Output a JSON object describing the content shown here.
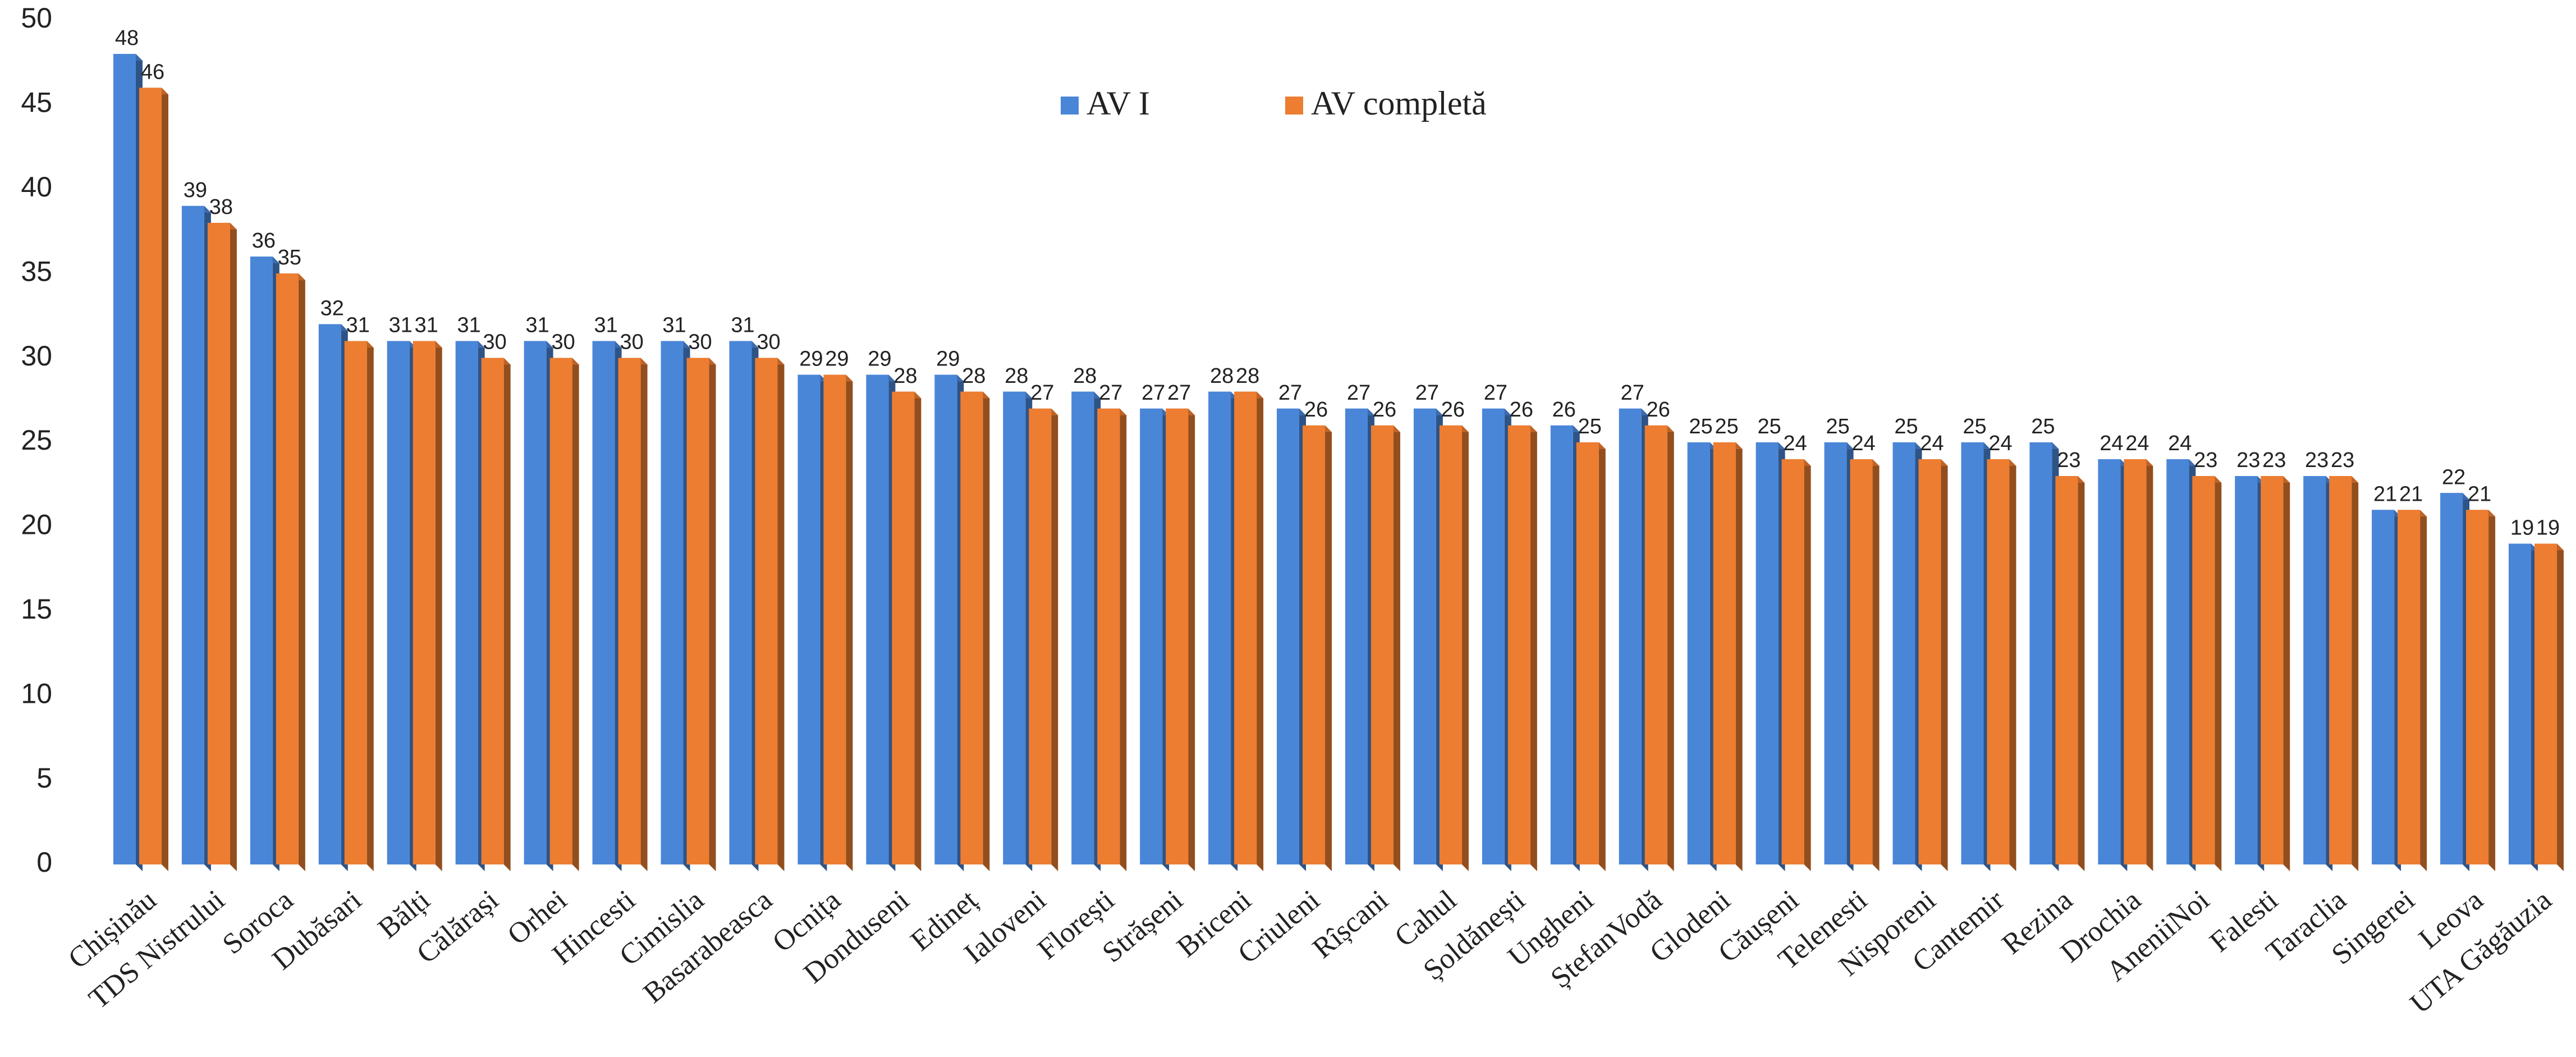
{
  "chart_data": {
    "type": "bar",
    "categories": [
      "Chișinău",
      "TDS Nistrului",
      "Soroca",
      "Dubăsari",
      "Bălți",
      "Călărași",
      "Orhei",
      "Hincesti",
      "Cimislia",
      "Basarabeasca",
      "Ocnița",
      "Donduseni",
      "Edineț",
      "Ialoveni",
      "Florești",
      "Strășeni",
      "Briceni",
      "Criuleni",
      "Rîșcani",
      "Cahul",
      "Șoldănești",
      "Ungheni",
      "ȘtefanVodă",
      "Glodeni",
      "Căușeni",
      "Telenesti",
      "Nisporeni",
      "Cantemir",
      "Rezina",
      "Drochia",
      "AneniiNoi",
      "Falesti",
      "Taraclia",
      "Singerei",
      "Leova",
      "UTA Găgăuzia"
    ],
    "series": [
      {
        "name": "AV I",
        "color": "#4a86d8",
        "values": [
          48,
          39,
          36,
          32,
          31,
          31,
          31,
          31,
          31,
          31,
          29,
          29,
          29,
          28,
          28,
          27,
          28,
          27,
          27,
          27,
          27,
          26,
          27,
          25,
          25,
          25,
          25,
          25,
          25,
          24,
          24,
          23,
          23,
          21,
          22,
          19
        ]
      },
      {
        "name": "AV completă",
        "color": "#ed7d31",
        "values": [
          46,
          38,
          35,
          31,
          31,
          30,
          30,
          30,
          30,
          30,
          29,
          28,
          28,
          27,
          27,
          27,
          28,
          26,
          26,
          26,
          26,
          25,
          26,
          25,
          24,
          24,
          24,
          24,
          23,
          24,
          23,
          23,
          23,
          21,
          21,
          19
        ]
      }
    ],
    "ylim": [
      0,
      50
    ],
    "yticks": [
      0,
      5,
      10,
      15,
      20,
      25,
      30,
      35,
      40,
      45,
      50
    ],
    "grid": false,
    "legend": "top"
  }
}
